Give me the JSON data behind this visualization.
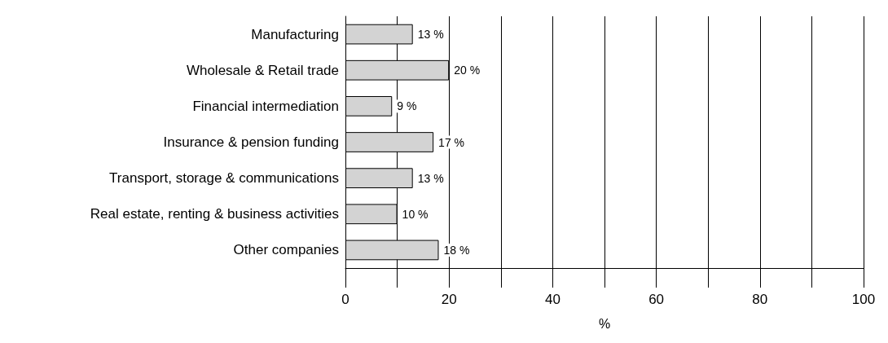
{
  "chart_data": {
    "type": "bar",
    "orientation": "horizontal",
    "categories": [
      "Manufacturing",
      "Wholesale & Retail trade",
      "Financial intermediation",
      "Insurance & pension funding",
      "Transport, storage & communications",
      "Real estate, renting & business activities",
      "Other companies"
    ],
    "values": [
      13,
      20,
      9,
      17,
      13,
      10,
      18
    ],
    "value_labels": [
      "13 %",
      "20 %",
      "9 %",
      "17 %",
      "13 %",
      "10 %",
      "18 %"
    ],
    "color": "#d3d3d3",
    "xlabel": "%",
    "xlim": [
      0,
      100
    ],
    "xticks": [
      0,
      {
        "value": 10,
        "label": null
      },
      20,
      {
        "value": 30,
        "label": null
      },
      40,
      {
        "value": 50,
        "label": null
      },
      60,
      {
        "value": 70,
        "label": null
      },
      80,
      {
        "value": 90,
        "label": null
      },
      100
    ],
    "grid": "x"
  }
}
